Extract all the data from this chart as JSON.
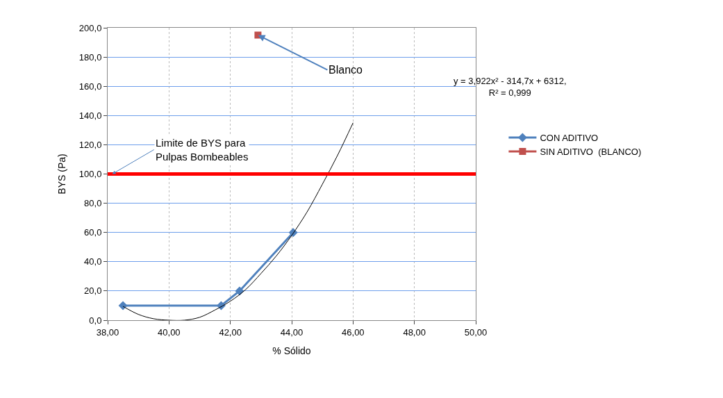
{
  "chart_data": {
    "type": "line",
    "xlabel": "% Sólido",
    "ylabel": "BYS (Pa)",
    "xlim": [
      38,
      50
    ],
    "xticks": [
      {
        "value": 38,
        "label": "38,00"
      },
      {
        "value": 40,
        "label": "40,00"
      },
      {
        "value": 42,
        "label": "42,00"
      },
      {
        "value": 44,
        "label": "44,00"
      },
      {
        "value": 46,
        "label": "46,00"
      },
      {
        "value": 48,
        "label": "48,00"
      },
      {
        "value": 50,
        "label": "50,00"
      }
    ],
    "ylim": [
      0,
      200
    ],
    "yticks": [
      {
        "value": 0,
        "label": "0,0"
      },
      {
        "value": 20,
        "label": "20,0"
      },
      {
        "value": 40,
        "label": "40,0"
      },
      {
        "value": 60,
        "label": "60,0"
      },
      {
        "value": 80,
        "label": "80,0"
      },
      {
        "value": 100,
        "label": "100,0"
      },
      {
        "value": 120,
        "label": "120,0"
      },
      {
        "value": 140,
        "label": "140,0"
      },
      {
        "value": 160,
        "label": "160,0"
      },
      {
        "value": 180,
        "label": "180,0"
      },
      {
        "value": 200,
        "label": "200,0"
      }
    ],
    "grid": true,
    "legend": "right",
    "series": [
      {
        "name": "CON ADITIVO",
        "color": "#4f81bd",
        "marker": "diamond",
        "x": [
          38.5,
          41.7,
          42.3,
          44.05
        ],
        "values": [
          10,
          10,
          20,
          60
        ]
      },
      {
        "name": "SIN ADITIVO  (BLANCO)",
        "color": "#c0504d",
        "marker": "square",
        "type": "line",
        "x": [
          42.9
        ],
        "values": [
          195
        ]
      },
      {
        "color": "#000000",
        "marker": "none",
        "x": [
          38.5,
          39,
          39.5,
          40,
          40.5,
          41,
          41.5,
          42,
          42.5,
          43,
          43.5,
          44,
          44.5,
          45,
          45.5,
          46
        ],
        "values": [
          9.5,
          4,
          1,
          0,
          0,
          2,
          7,
          13,
          21,
          32,
          44,
          58,
          74,
          93,
          113,
          135
        ]
      }
    ],
    "ref_lines": [
      {
        "axis": "y",
        "value": 100,
        "color": "#ff0000",
        "label": "Limite de BYS para\nPulpas Bombeables"
      }
    ],
    "annotations": [
      {
        "text": "Blanco",
        "x": 42.9,
        "y": 195
      },
      "y = 3,922x² - 314,7x + 6312,\nR² = 0,999"
    ]
  }
}
